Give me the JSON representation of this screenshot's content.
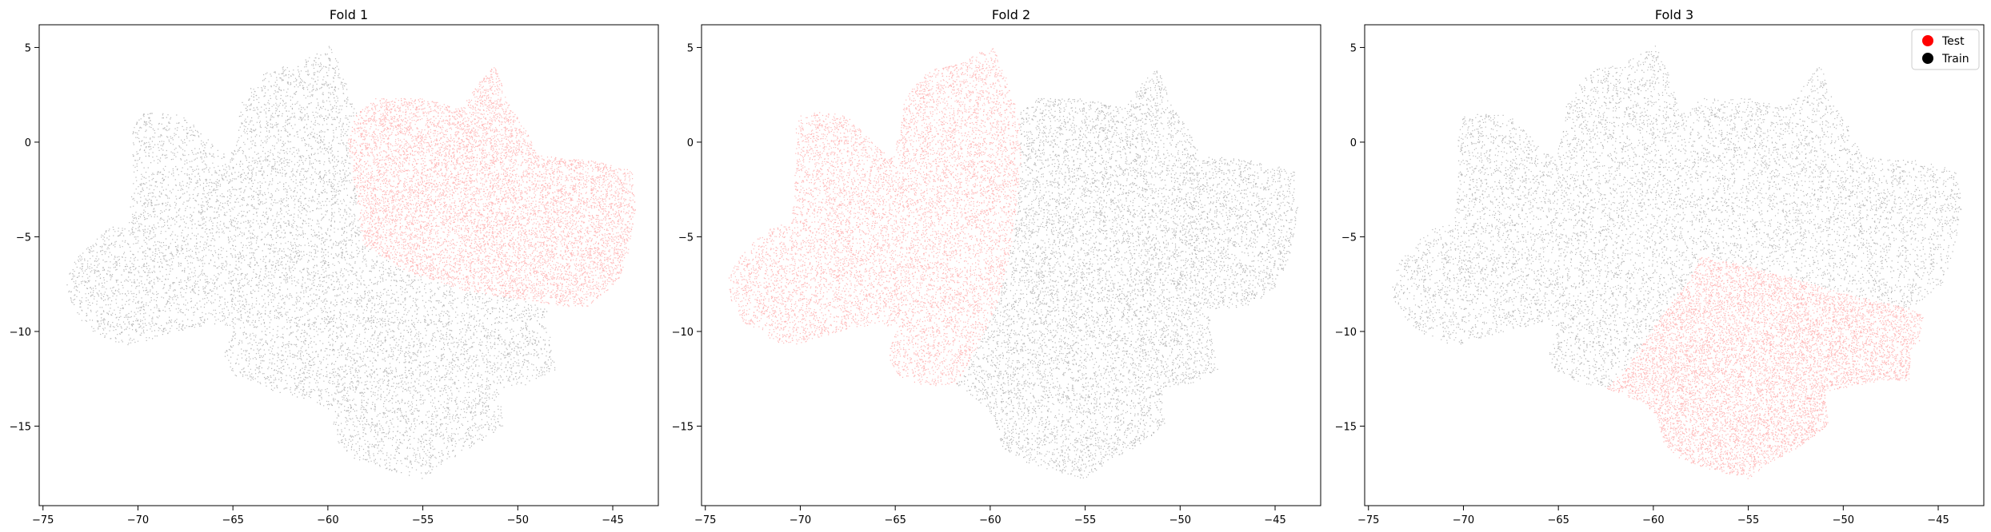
{
  "figure": {
    "panels": [
      {
        "title": "Fold 1"
      },
      {
        "title": "Fold 2"
      },
      {
        "title": "Fold 3"
      }
    ],
    "legend": {
      "location": "top-right",
      "panel": 2,
      "entries": [
        {
          "label": "Test",
          "color": "#ff0000"
        },
        {
          "label": "Train",
          "color": "#000000"
        }
      ]
    }
  },
  "chart_data": [
    {
      "type": "scatter",
      "title": "Fold 1",
      "xlabel": "",
      "ylabel": "",
      "xlim": [
        -75.2,
        -42.6
      ],
      "ylim": [
        -19.2,
        6.2
      ],
      "xticks": [
        -75,
        -70,
        -65,
        -60,
        -55,
        -50,
        -45
      ],
      "yticks": [
        5,
        0,
        -5,
        -10,
        -15
      ],
      "grid": false,
      "series": [
        {
          "name": "Test",
          "color": "#ff0000",
          "region": [
            [
              -58.5,
              1.5
            ],
            [
              -57.5,
              2.3
            ],
            [
              -55,
              2.3
            ],
            [
              -53,
              1.8
            ],
            [
              -52,
              3.2
            ],
            [
              -51.2,
              4.1
            ],
            [
              -50.5,
              2.0
            ],
            [
              -49.5,
              0.5
            ],
            [
              -49,
              -0.7
            ],
            [
              -46,
              -1.0
            ],
            [
              -44,
              -1.5
            ],
            [
              -43.8,
              -3.5
            ],
            [
              -44.2,
              -5.8
            ],
            [
              -44.8,
              -7.5
            ],
            [
              -46.5,
              -8.8
            ],
            [
              -50,
              -8.3
            ],
            [
              -53,
              -7.8
            ],
            [
              -56,
              -6.8
            ],
            [
              -58.2,
              -5.4
            ],
            [
              -58.5,
              -3
            ],
            [
              -59,
              0
            ]
          ]
        },
        {
          "name": "Train",
          "color": "#000000",
          "region": [
            [
              -73.8,
              -7.2
            ],
            [
              -73.3,
              -6.2
            ],
            [
              -72.5,
              -5.3
            ],
            [
              -71.5,
              -4.5
            ],
            [
              -70.5,
              -4.2
            ],
            [
              -70.3,
              -2.0
            ],
            [
              -70.3,
              0.5
            ],
            [
              -70.0,
              1.5
            ],
            [
              -68.5,
              1.6
            ],
            [
              -67.5,
              1.3
            ],
            [
              -66.0,
              -0.2
            ],
            [
              -65.2,
              -0.8
            ],
            [
              -64.8,
              0.5
            ],
            [
              -64.6,
              2.0
            ],
            [
              -64.0,
              3.0
            ],
            [
              -63.2,
              3.8
            ],
            [
              -61.5,
              4.2
            ],
            [
              -60.5,
              4.8
            ],
            [
              -59.9,
              5.1
            ],
            [
              -59.3,
              3.8
            ],
            [
              -58.5,
              1.5
            ],
            [
              -59,
              0
            ],
            [
              -58.5,
              -3
            ],
            [
              -58.2,
              -5.4
            ],
            [
              -56,
              -6.8
            ],
            [
              -53,
              -7.8
            ],
            [
              -50,
              -8.3
            ],
            [
              -48.5,
              -8.8
            ],
            [
              -48.3,
              -10.5
            ],
            [
              -48.0,
              -12.0
            ],
            [
              -49.5,
              -12.8
            ],
            [
              -51.0,
              -13.0
            ],
            [
              -50.8,
              -15.0
            ],
            [
              -52.5,
              -16.2
            ],
            [
              -54.0,
              -17.0
            ],
            [
              -55.0,
              -17.8
            ],
            [
              -57.0,
              -17.3
            ],
            [
              -58.5,
              -16.8
            ],
            [
              -59.5,
              -16.0
            ],
            [
              -59.8,
              -14.5
            ],
            [
              -60.5,
              -13.8
            ],
            [
              -62.5,
              -13.3
            ],
            [
              -64.0,
              -12.7
            ],
            [
              -65.2,
              -12.2
            ],
            [
              -65.5,
              -11.2
            ],
            [
              -65.0,
              -9.8
            ],
            [
              -66.0,
              -9.6
            ],
            [
              -67.5,
              -9.9
            ],
            [
              -69.0,
              -10.3
            ],
            [
              -70.5,
              -10.8
            ],
            [
              -72.0,
              -10.3
            ],
            [
              -73.0,
              -9.5
            ],
            [
              -73.7,
              -8.3
            ]
          ]
        }
      ]
    },
    {
      "type": "scatter",
      "title": "Fold 2",
      "xlabel": "",
      "ylabel": "",
      "xlim": [
        -75.2,
        -42.6
      ],
      "ylim": [
        -19.2,
        6.2
      ],
      "xticks": [
        -75,
        -70,
        -65,
        -60,
        -55,
        -50,
        -45
      ],
      "yticks": [
        5,
        0,
        -5,
        -10,
        -15
      ],
      "grid": false,
      "series": [
        {
          "name": "Test",
          "color": "#ff0000",
          "region": [
            [
              -73.8,
              -7.2
            ],
            [
              -73.3,
              -6.2
            ],
            [
              -72.5,
              -5.3
            ],
            [
              -71.5,
              -4.5
            ],
            [
              -70.5,
              -4.2
            ],
            [
              -70.3,
              -2.0
            ],
            [
              -70.3,
              0.5
            ],
            [
              -70.0,
              1.5
            ],
            [
              -68.5,
              1.6
            ],
            [
              -67.5,
              1.3
            ],
            [
              -66.0,
              -0.2
            ],
            [
              -65.2,
              -0.8
            ],
            [
              -64.8,
              0.5
            ],
            [
              -64.6,
              2.0
            ],
            [
              -64.0,
              3.0
            ],
            [
              -63.2,
              3.8
            ],
            [
              -61.5,
              4.2
            ],
            [
              -60.5,
              4.8
            ],
            [
              -59.9,
              5.1
            ],
            [
              -59.3,
              3.8
            ],
            [
              -58.5,
              1.5
            ],
            [
              -58.4,
              -1.0
            ],
            [
              -58.6,
              -3.5
            ],
            [
              -59.0,
              -6.0
            ],
            [
              -59.6,
              -8.5
            ],
            [
              -60.5,
              -10.5
            ],
            [
              -61.8,
              -12.8
            ],
            [
              -63.5,
              -12.9
            ],
            [
              -64.8,
              -12.4
            ],
            [
              -65.4,
              -11.3
            ],
            [
              -65.0,
              -9.8
            ],
            [
              -66.0,
              -9.6
            ],
            [
              -67.5,
              -9.9
            ],
            [
              -69.0,
              -10.3
            ],
            [
              -70.5,
              -10.8
            ],
            [
              -72.0,
              -10.3
            ],
            [
              -73.0,
              -9.5
            ],
            [
              -73.7,
              -8.3
            ]
          ]
        },
        {
          "name": "Train",
          "color": "#000000",
          "region": [
            [
              -58.5,
              1.5
            ],
            [
              -57.5,
              2.3
            ],
            [
              -55,
              2.3
            ],
            [
              -53,
              1.8
            ],
            [
              -52,
              3.2
            ],
            [
              -51.2,
              4.1
            ],
            [
              -50.5,
              2.0
            ],
            [
              -49.5,
              0.5
            ],
            [
              -49,
              -0.7
            ],
            [
              -46,
              -1.0
            ],
            [
              -44,
              -1.5
            ],
            [
              -43.8,
              -3.5
            ],
            [
              -44.2,
              -5.8
            ],
            [
              -44.8,
              -7.5
            ],
            [
              -46.5,
              -8.8
            ],
            [
              -48.5,
              -8.8
            ],
            [
              -48.3,
              -10.5
            ],
            [
              -48.0,
              -12.0
            ],
            [
              -49.5,
              -12.8
            ],
            [
              -51.0,
              -13.0
            ],
            [
              -50.8,
              -15.0
            ],
            [
              -52.5,
              -16.2
            ],
            [
              -54.0,
              -17.0
            ],
            [
              -55.0,
              -17.8
            ],
            [
              -57.0,
              -17.3
            ],
            [
              -58.5,
              -16.8
            ],
            [
              -59.5,
              -16.0
            ],
            [
              -59.8,
              -14.5
            ],
            [
              -60.5,
              -13.8
            ],
            [
              -61.8,
              -12.8
            ],
            [
              -60.5,
              -10.5
            ],
            [
              -59.6,
              -8.5
            ],
            [
              -59.0,
              -6.0
            ],
            [
              -58.6,
              -3.5
            ],
            [
              -58.4,
              -1.0
            ]
          ]
        }
      ]
    },
    {
      "type": "scatter",
      "title": "Fold 3",
      "xlabel": "",
      "ylabel": "",
      "xlim": [
        -75.2,
        -42.6
      ],
      "ylim": [
        -19.2,
        6.2
      ],
      "xticks": [
        -75,
        -70,
        -65,
        -60,
        -55,
        -50,
        -45
      ],
      "yticks": [
        5,
        0,
        -5,
        -10,
        -15
      ],
      "grid": false,
      "legend": {
        "location": "top-right",
        "entries": [
          "Test",
          "Train"
        ]
      },
      "series": [
        {
          "name": "Test",
          "color": "#ff0000",
          "region": [
            [
              -62.5,
              -13.0
            ],
            [
              -61.5,
              -12.0
            ],
            [
              -60.5,
              -10.5
            ],
            [
              -59.5,
              -9.0
            ],
            [
              -58.3,
              -7.5
            ],
            [
              -57.5,
              -6.0
            ],
            [
              -54.0,
              -6.8
            ],
            [
              -50.0,
              -8.0
            ],
            [
              -46.5,
              -8.8
            ],
            [
              -45.8,
              -9.2
            ],
            [
              -46.0,
              -10.5
            ],
            [
              -46.5,
              -11.0
            ],
            [
              -46.5,
              -12.6
            ],
            [
              -48.0,
              -12.6
            ],
            [
              -49.5,
              -12.9
            ],
            [
              -51.0,
              -13.2
            ],
            [
              -50.8,
              -15.0
            ],
            [
              -52.5,
              -16.2
            ],
            [
              -54.0,
              -17.0
            ],
            [
              -55.0,
              -17.8
            ],
            [
              -57.0,
              -17.3
            ],
            [
              -58.5,
              -16.8
            ],
            [
              -59.5,
              -16.0
            ],
            [
              -59.8,
              -14.5
            ],
            [
              -60.5,
              -13.8
            ]
          ]
        },
        {
          "name": "Train",
          "color": "#000000",
          "region": [
            [
              -73.8,
              -7.2
            ],
            [
              -73.3,
              -6.2
            ],
            [
              -72.5,
              -5.3
            ],
            [
              -71.5,
              -4.5
            ],
            [
              -70.5,
              -4.2
            ],
            [
              -70.3,
              -2.0
            ],
            [
              -70.3,
              0.5
            ],
            [
              -70.0,
              1.5
            ],
            [
              -68.5,
              1.6
            ],
            [
              -67.5,
              1.3
            ],
            [
              -66.0,
              -0.2
            ],
            [
              -65.2,
              -0.8
            ],
            [
              -64.8,
              0.5
            ],
            [
              -64.6,
              2.0
            ],
            [
              -64.0,
              3.0
            ],
            [
              -63.2,
              3.8
            ],
            [
              -61.5,
              4.2
            ],
            [
              -60.5,
              4.8
            ],
            [
              -59.9,
              5.1
            ],
            [
              -59.3,
              3.8
            ],
            [
              -58.5,
              1.5
            ],
            [
              -57.5,
              2.3
            ],
            [
              -55,
              2.3
            ],
            [
              -53,
              1.8
            ],
            [
              -52,
              3.2
            ],
            [
              -51.2,
              4.1
            ],
            [
              -50.5,
              2.0
            ],
            [
              -49.5,
              0.5
            ],
            [
              -49,
              -0.7
            ],
            [
              -46,
              -1.0
            ],
            [
              -44,
              -1.5
            ],
            [
              -43.8,
              -3.5
            ],
            [
              -44.2,
              -5.8
            ],
            [
              -44.8,
              -7.5
            ],
            [
              -46.5,
              -8.8
            ],
            [
              -50.0,
              -8.0
            ],
            [
              -54.0,
              -6.8
            ],
            [
              -57.5,
              -6.0
            ],
            [
              -58.3,
              -7.5
            ],
            [
              -59.5,
              -9.0
            ],
            [
              -60.5,
              -10.5
            ],
            [
              -61.5,
              -12.0
            ],
            [
              -62.5,
              -13.0
            ],
            [
              -64.0,
              -12.7
            ],
            [
              -65.2,
              -12.2
            ],
            [
              -65.5,
              -11.2
            ],
            [
              -65.0,
              -9.8
            ],
            [
              -66.0,
              -9.6
            ],
            [
              -67.5,
              -9.9
            ],
            [
              -69.0,
              -10.3
            ],
            [
              -70.5,
              -10.8
            ],
            [
              -72.0,
              -10.3
            ],
            [
              -73.0,
              -9.5
            ],
            [
              -73.7,
              -8.3
            ]
          ]
        }
      ]
    }
  ]
}
